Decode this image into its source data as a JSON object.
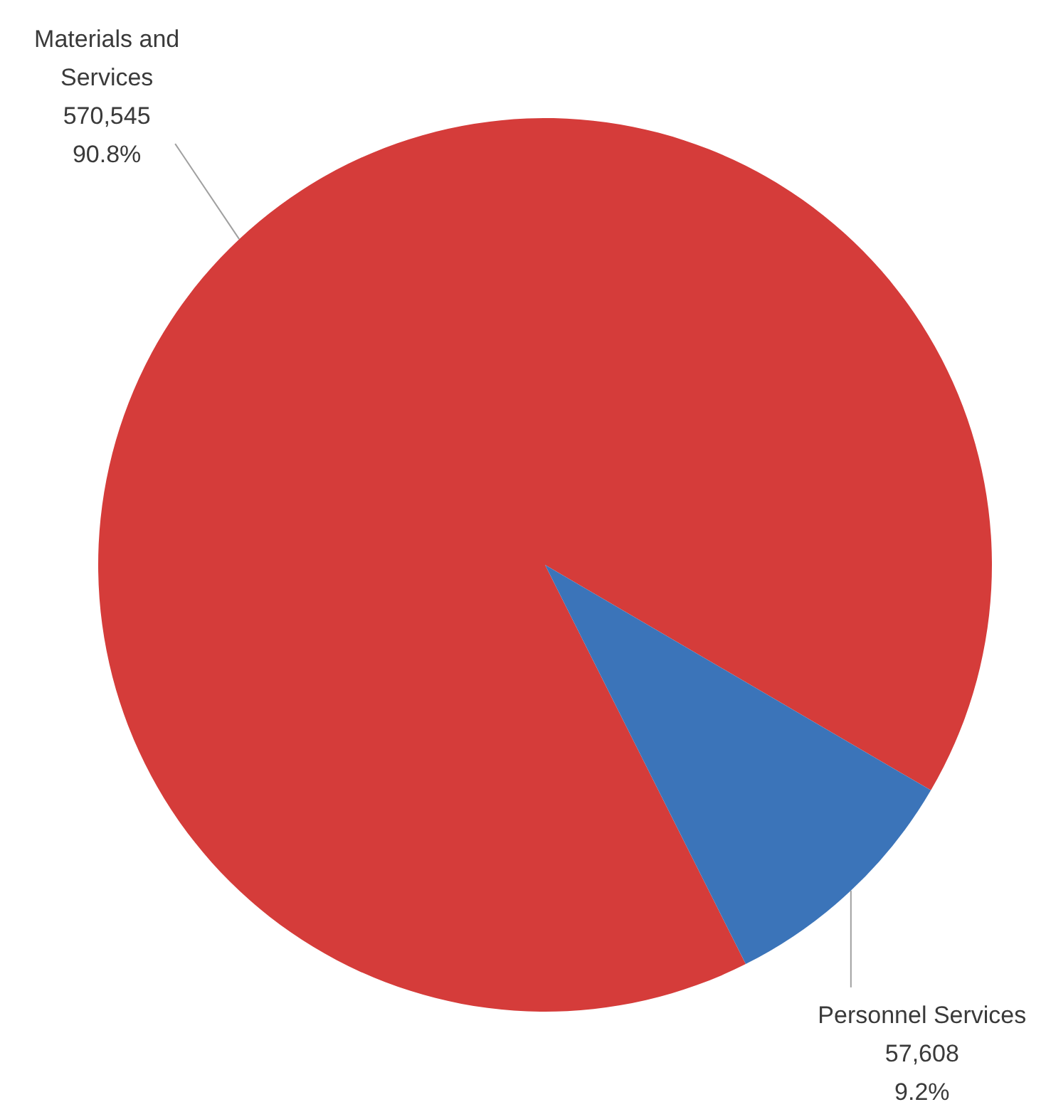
{
  "chart_data": {
    "type": "pie",
    "categories": [
      "Materials and Services",
      "Personnel Services"
    ],
    "values": [
      570545,
      57608
    ],
    "colors": [
      "#d53c3a",
      "#3b74b9"
    ],
    "value_labels": [
      "570,545\n90.8%",
      "57,608\n9.2%"
    ],
    "legend": false
  }
}
